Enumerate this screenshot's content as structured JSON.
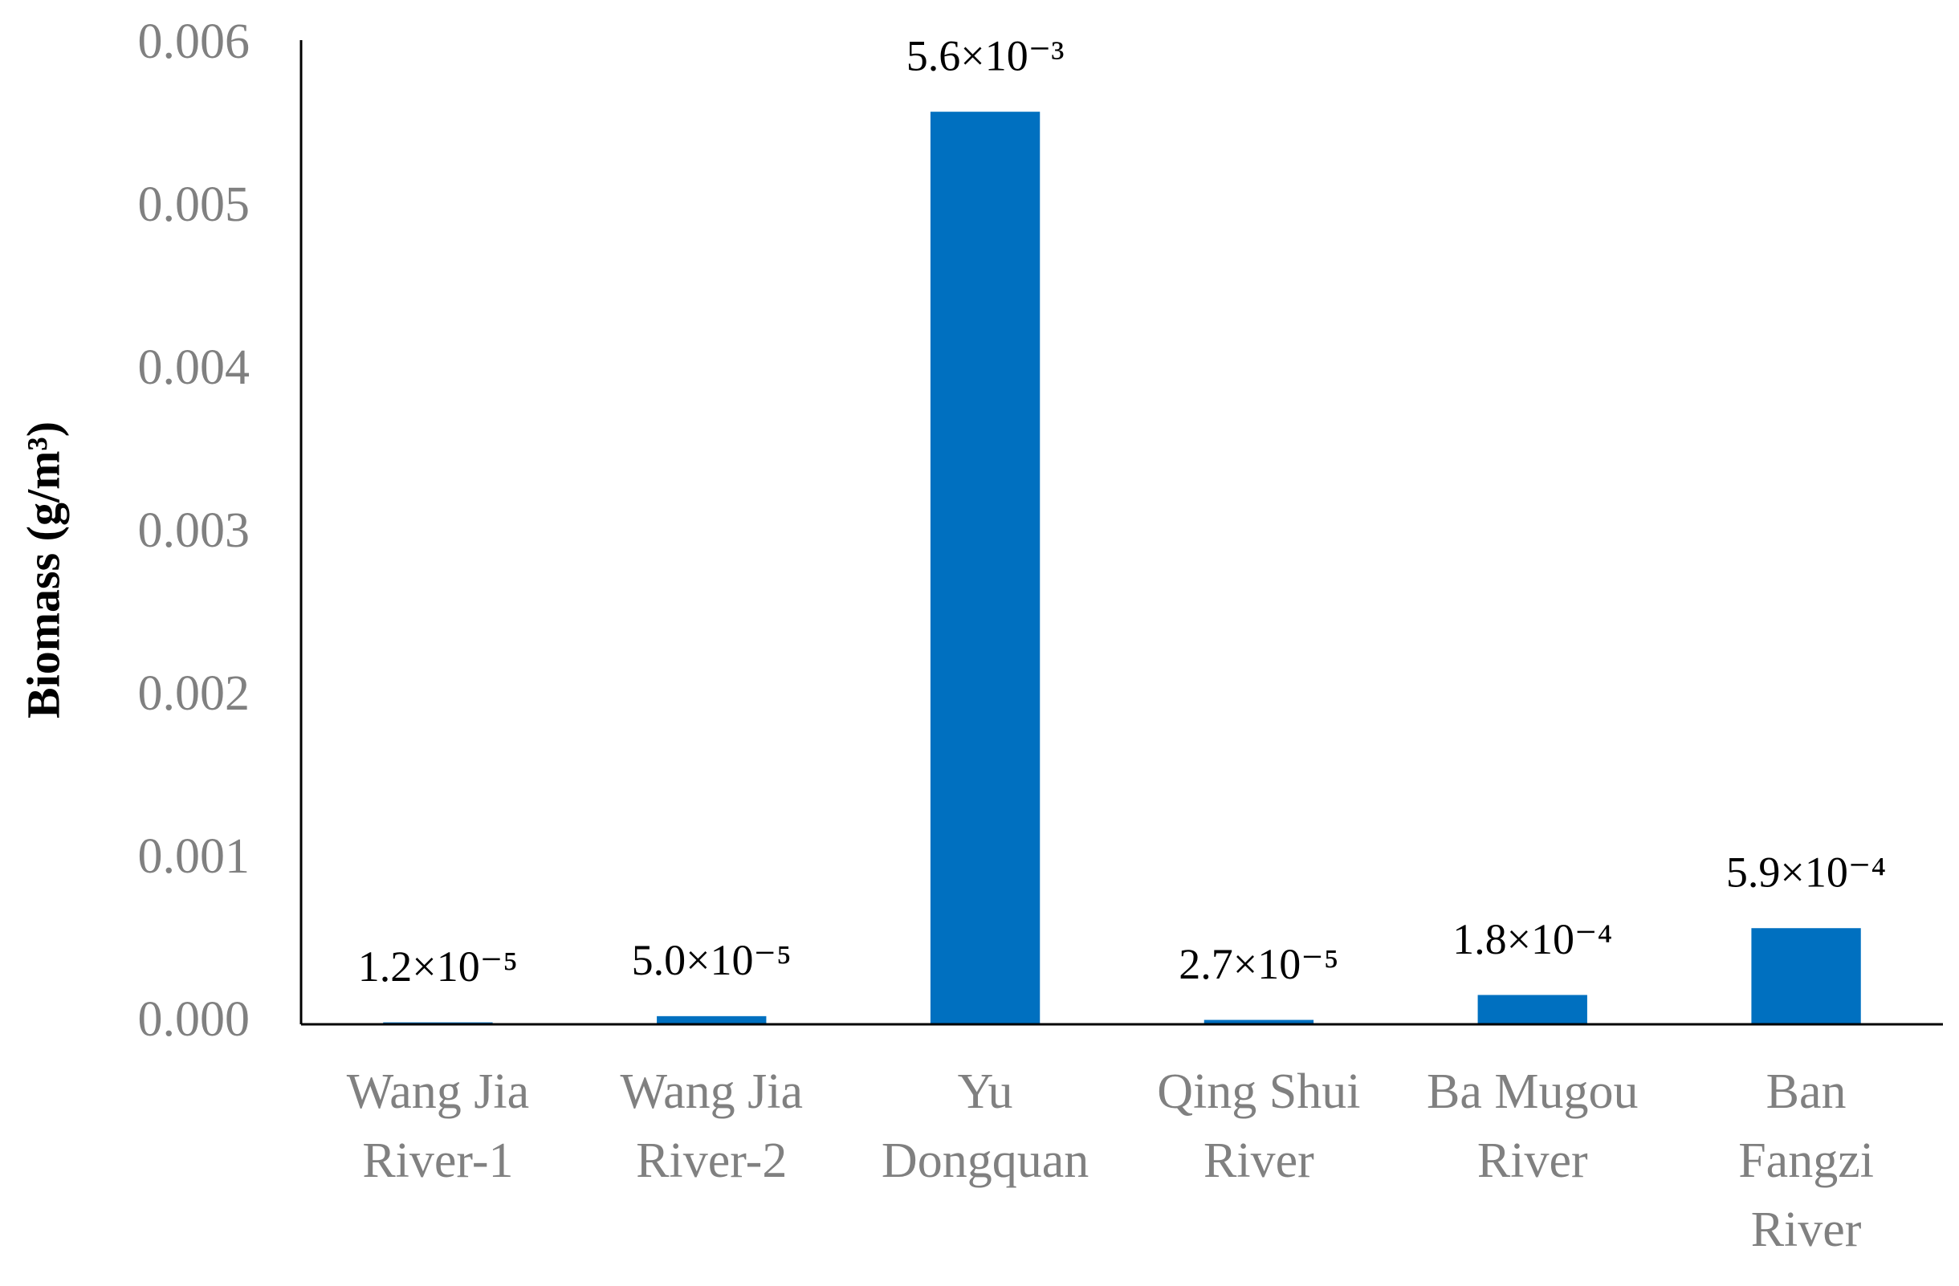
{
  "chart_data": {
    "type": "bar",
    "y_label": "Biomass (g/m³)",
    "categories": [
      [
        "Wang Jia",
        "River-1"
      ],
      [
        "Wang Jia",
        "River-2"
      ],
      [
        "Yu",
        "Dongquan"
      ],
      [
        "Qing Shui",
        "River"
      ],
      [
        "Ba Mugou",
        "River"
      ],
      [
        "Ban",
        "Fangzi",
        "River"
      ]
    ],
    "values": [
      1.2e-05,
      5e-05,
      0.0056,
      2.7e-05,
      0.00018,
      0.00059
    ],
    "value_labels": [
      "1.2×10⁻⁵",
      "5.0×10⁻⁵",
      "5.6×10⁻³",
      "2.7×10⁻⁵",
      "1.8×10⁻⁴",
      "5.9×10⁻⁴"
    ],
    "color": "#0070c0",
    "ylim": [
      0,
      0.006
    ],
    "yticks": [
      {
        "value": 0,
        "label": "0.000"
      },
      {
        "value": 0.001,
        "label": "0.001"
      },
      {
        "value": 0.002,
        "label": "0.002"
      },
      {
        "value": 0.003,
        "label": "0.003"
      },
      {
        "value": 0.004,
        "label": "0.004"
      },
      {
        "value": 0.005,
        "label": "0.005"
      },
      {
        "value": 0.006,
        "label": "0.006"
      }
    ],
    "grid": false
  }
}
